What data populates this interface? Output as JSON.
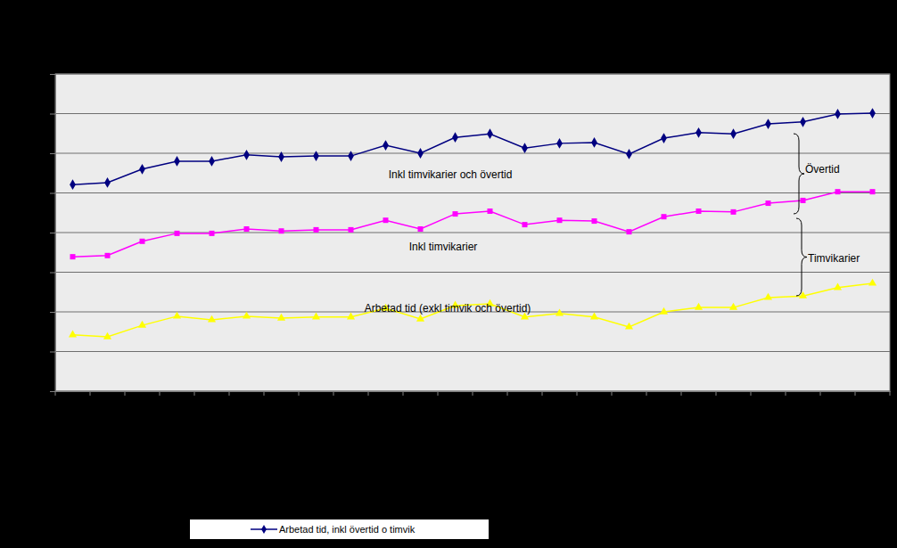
{
  "chart_data": {
    "type": "line",
    "categories": [
      null,
      null,
      null,
      null,
      null,
      null,
      null,
      null,
      null,
      null,
      null,
      null,
      null,
      null,
      null,
      null,
      null,
      null,
      null,
      null,
      null,
      null,
      null,
      null
    ],
    "series": [
      {
        "name": "Arbetad tid, inkl övertid o timvik",
        "color": "#000080",
        "marker": "diamond",
        "values": [
          5.21,
          5.26,
          5.6,
          5.8,
          5.8,
          5.96,
          5.91,
          5.93,
          5.93,
          6.2,
          6.0,
          6.4,
          6.49,
          6.13,
          6.25,
          6.27,
          5.98,
          6.38,
          6.52,
          6.49,
          6.74,
          6.79,
          6.99,
          7.01
        ]
      },
      {
        "color": "#FF00FF",
        "marker": "square",
        "values": [
          3.39,
          3.42,
          3.78,
          3.98,
          3.98,
          4.09,
          4.04,
          4.07,
          4.07,
          4.31,
          4.09,
          4.47,
          4.54,
          4.2,
          4.31,
          4.29,
          4.02,
          4.4,
          4.54,
          4.52,
          4.74,
          4.81,
          5.03,
          5.03
        ]
      },
      {
        "color": "#FFFF00",
        "marker": "triangle",
        "values": [
          1.42,
          1.37,
          1.66,
          1.89,
          1.8,
          1.89,
          1.84,
          1.87,
          1.87,
          2.09,
          1.82,
          2.16,
          2.2,
          1.87,
          1.96,
          1.87,
          1.62,
          2.0,
          2.11,
          2.11,
          2.36,
          2.4,
          2.61,
          2.72
        ]
      }
    ],
    "ylim": [
      0,
      8
    ],
    "yticks": [
      0,
      1,
      2,
      3,
      4,
      5,
      6,
      7,
      8
    ],
    "grid": true,
    "tick_labels": false,
    "legend": "bottom",
    "annotations": [
      "Inkl timvikarier och övertid",
      "Inkl timvikarier",
      "Arbetad tid (exkl timvik och övertid)",
      "Övertid",
      "Timvikarier"
    ]
  }
}
